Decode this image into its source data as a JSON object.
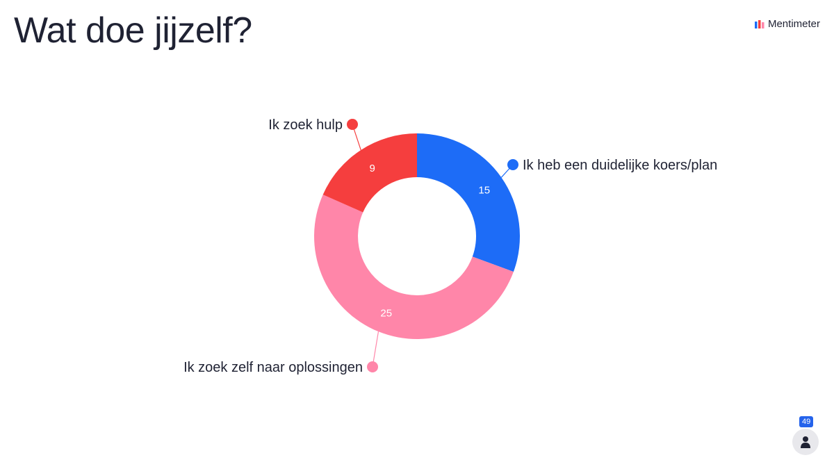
{
  "title": "Wat doe jijzelf?",
  "brand": {
    "name": "Mentimeter",
    "icon": "mentimeter-logo-icon"
  },
  "participants": {
    "count": "49",
    "icon": "person-icon"
  },
  "colors": {
    "blue": "#1d6cf7",
    "pink": "#ff86a9",
    "red": "#f53e3e",
    "white_text": "#ffffff",
    "label_text": "#1f2233"
  },
  "chart_data": {
    "type": "pie",
    "donut": true,
    "slices": [
      {
        "label": "Ik heb een duidelijke koers/plan",
        "value": 15,
        "color": "#1d6cf7"
      },
      {
        "label": "Ik zoek zelf naar oplossingen",
        "value": 25,
        "color": "#ff86a9"
      },
      {
        "label": "Ik zoek hulp",
        "value": 9,
        "color": "#f53e3e"
      }
    ],
    "values_shown": [
      "15",
      "25",
      "9"
    ]
  }
}
